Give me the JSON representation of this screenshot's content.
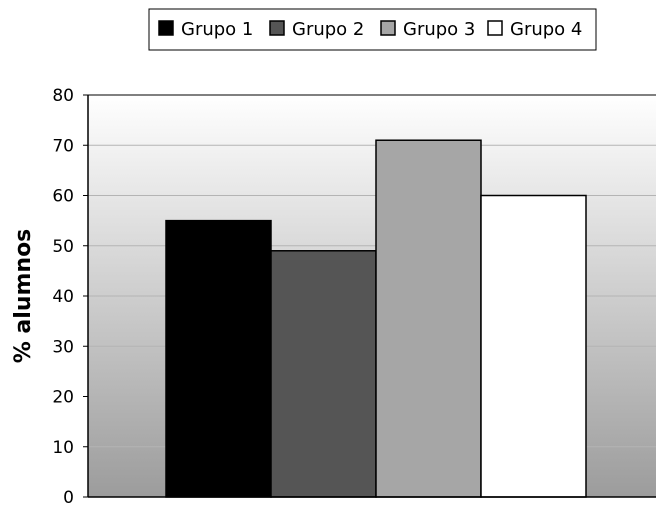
{
  "chart_data": {
    "type": "bar",
    "categories": [
      ""
    ],
    "series": [
      {
        "name": "Grupo 1",
        "values": [
          55
        ],
        "color": "#000000"
      },
      {
        "name": "Grupo 2",
        "values": [
          49
        ],
        "color": "#555555"
      },
      {
        "name": "Grupo 3",
        "values": [
          71
        ],
        "color": "#a6a6a6"
      },
      {
        "name": "Grupo 4",
        "values": [
          60
        ],
        "color": "#ffffff"
      }
    ],
    "ylabel": "% alumnos",
    "ylim": [
      0,
      80
    ],
    "yticks": [
      "0",
      "10",
      "20",
      "30",
      "40",
      "50",
      "60",
      "70",
      "80"
    ],
    "grid": true,
    "legend_position": "top-center"
  }
}
